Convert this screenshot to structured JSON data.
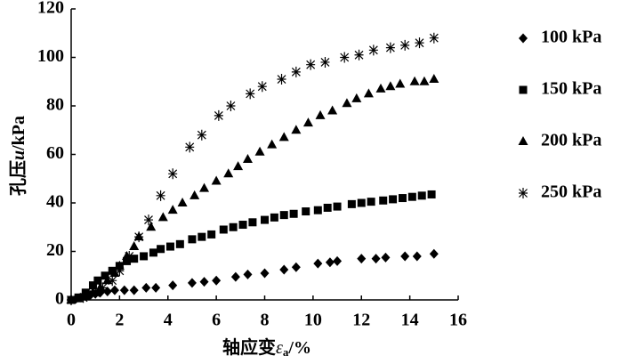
{
  "chart_data": {
    "type": "scatter",
    "xlabel": {
      "prefix": "轴应变",
      "symbol": "ε",
      "subscript": "a",
      "suffix": "/%"
    },
    "ylabel": {
      "prefix": "孔压",
      "symbol": "u",
      "suffix": "/kPa"
    },
    "xlim": [
      0,
      16
    ],
    "xticks": [
      0,
      2,
      4,
      6,
      8,
      10,
      12,
      14,
      16
    ],
    "ylim": [
      0,
      120
    ],
    "yticks": [
      0,
      20,
      40,
      60,
      80,
      100,
      120
    ],
    "legend": "right",
    "series": [
      {
        "name": "100 kPa",
        "color": "#000000",
        "marker": "diamond",
        "x": [
          0,
          0.2,
          0.4,
          0.6,
          0.8,
          1,
          1.2,
          1.5,
          1.8,
          2.2,
          2.6,
          3.1,
          3.5,
          4.2,
          5,
          5.5,
          6,
          6.8,
          7.3,
          8,
          8.8,
          9.3,
          10.2,
          10.7,
          11,
          12,
          12.6,
          13,
          13.8,
          14.3,
          15
        ],
        "values": [
          0,
          0.5,
          1,
          1.5,
          2,
          2.5,
          3,
          3.5,
          4,
          4,
          4,
          5,
          5,
          6,
          7,
          7.5,
          8,
          9.5,
          10.5,
          11,
          12.5,
          13.5,
          15,
          15.5,
          16,
          17,
          17,
          17.5,
          18,
          18,
          19
        ]
      },
      {
        "name": "150 kPa",
        "color": "#000000",
        "marker": "square",
        "x": [
          0,
          0.3,
          0.6,
          0.9,
          1.1,
          1.4,
          1.7,
          2,
          2.3,
          2.6,
          3,
          3.4,
          3.7,
          4.1,
          4.5,
          5,
          5.4,
          5.8,
          6.3,
          6.7,
          7.1,
          7.5,
          8,
          8.4,
          8.8,
          9.2,
          9.7,
          10.2,
          10.6,
          11,
          11.6,
          12,
          12.4,
          12.9,
          13.3,
          13.7,
          14.1,
          14.5,
          14.9
        ],
        "values": [
          0,
          1,
          3,
          6,
          8,
          10,
          12,
          14,
          16,
          17,
          18,
          19.5,
          21,
          22,
          23,
          25,
          26,
          27,
          29,
          30,
          31,
          32,
          33,
          34,
          35,
          35.5,
          36.5,
          37,
          38,
          38.5,
          39.5,
          40,
          40.5,
          41,
          41.5,
          42,
          42.5,
          43,
          43.5
        ]
      },
      {
        "name": "200 kPa",
        "color": "#000000",
        "marker": "triangle",
        "x": [
          0,
          0.3,
          0.6,
          0.9,
          1.2,
          1.5,
          1.8,
          2,
          2.3,
          2.6,
          2.8,
          3.3,
          3.8,
          4.2,
          4.6,
          5.1,
          5.5,
          6,
          6.5,
          6.9,
          7.3,
          7.8,
          8.3,
          8.8,
          9.3,
          9.8,
          10.3,
          10.8,
          11.4,
          11.8,
          12.3,
          12.8,
          13.2,
          13.6,
          14.2,
          14.6,
          15
        ],
        "values": [
          0,
          0.5,
          1.5,
          3,
          5,
          8,
          11,
          14,
          18,
          22,
          26,
          30,
          34,
          37,
          40,
          43,
          46,
          49,
          52,
          55,
          58,
          61,
          64,
          67,
          70,
          73,
          76,
          78,
          81,
          83,
          85,
          87,
          88,
          89,
          90,
          90,
          91
        ]
      },
      {
        "name": "250 kPa",
        "color": "#000000",
        "marker": "asterisk",
        "x": [
          0,
          0.5,
          1,
          1.3,
          1.7,
          2,
          2.4,
          2.8,
          3.2,
          3.7,
          4.2,
          4.9,
          5.4,
          6.1,
          6.6,
          7.4,
          7.9,
          8.7,
          9.3,
          9.9,
          10.5,
          11.3,
          11.9,
          12.5,
          13.2,
          13.8,
          14.4,
          15
        ],
        "values": [
          0,
          1,
          3,
          5,
          8,
          12,
          18,
          26,
          33,
          43,
          52,
          63,
          68,
          76,
          80,
          85,
          88,
          91,
          94,
          97,
          98,
          100,
          101,
          103,
          104,
          105,
          106,
          108
        ]
      }
    ]
  }
}
